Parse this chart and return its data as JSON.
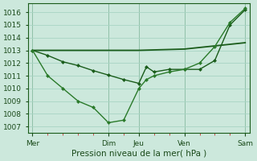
{
  "xlabel": "Pression niveau de la mer( hPa )",
  "background_color": "#cce8dc",
  "grid_color": "#a8d4c4",
  "line_dark": "#1a5c1a",
  "line_mid": "#2a7a2a",
  "ylim": [
    1006.5,
    1016.7
  ],
  "yticks": [
    1007,
    1008,
    1009,
    1010,
    1011,
    1012,
    1013,
    1014,
    1015,
    1016
  ],
  "day_labels": [
    "Mer",
    "",
    "Dim",
    "Jeu",
    "",
    "Ven",
    "",
    "Sam"
  ],
  "day_x": [
    0,
    3,
    5,
    7,
    9,
    10,
    12,
    14
  ],
  "vline_x": [
    0,
    5,
    7,
    10,
    14
  ],
  "n_minor": 14,
  "xlim": [
    -0.3,
    14.3
  ],
  "line1_x": [
    0,
    1,
    2,
    3,
    4,
    5,
    6,
    7,
    7.5,
    8,
    9,
    10,
    11,
    12,
    13,
    14
  ],
  "line1_y": [
    1013.0,
    1012.6,
    1012.1,
    1011.8,
    1011.4,
    1011.05,
    1010.7,
    1010.4,
    1011.7,
    1011.3,
    1011.5,
    1011.5,
    1011.5,
    1012.2,
    1015.0,
    1016.2
  ],
  "line2_x": [
    0,
    1,
    2,
    3,
    4,
    5,
    6,
    7,
    7.5,
    8,
    9,
    10,
    11,
    12,
    13,
    14
  ],
  "line2_y": [
    1013.0,
    1011.0,
    1010.0,
    1009.0,
    1008.5,
    1007.3,
    1007.5,
    1010.0,
    1010.7,
    1011.0,
    1011.3,
    1011.5,
    1012.0,
    1013.3,
    1015.2,
    1016.3
  ],
  "line3_x": [
    0,
    5,
    7,
    10,
    14
  ],
  "line3_y": [
    1013.0,
    1013.0,
    1013.0,
    1013.1,
    1013.6
  ],
  "tick_fontsize": 6.5,
  "label_fontsize": 7.5,
  "marker_size": 2.5,
  "lw1": 1.0,
  "lw2": 1.0,
  "lw3": 1.3
}
